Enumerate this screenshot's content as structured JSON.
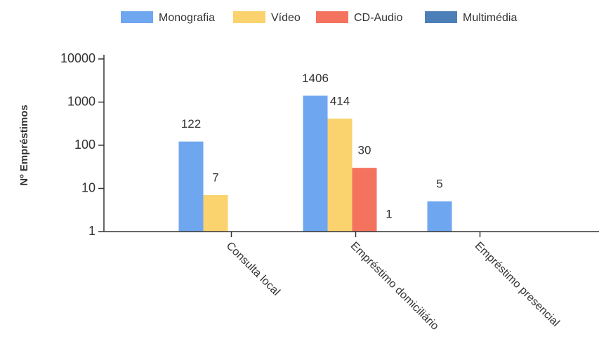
{
  "chart_data": {
    "type": "bar",
    "y_label": "Nº Empréstimos",
    "categories": [
      "Consulta local",
      "Empréstimo domiciliário",
      "Empréstimo presencial"
    ],
    "series": [
      {
        "name": "Monografia",
        "color": "#6ea6f0",
        "values": [
          122,
          1406,
          5
        ]
      },
      {
        "name": "Vídeo",
        "color": "#fad26e",
        "values": [
          7,
          414,
          null
        ]
      },
      {
        "name": "CD-Audio",
        "color": "#f4735f",
        "values": [
          null,
          30,
          null
        ]
      },
      {
        "name": "Multimédia",
        "color": "#4c7fb8",
        "values": [
          null,
          1,
          null
        ]
      }
    ],
    "ylim": [
      1,
      10000
    ],
    "yticks": [
      1,
      10,
      100,
      1000,
      10000
    ],
    "log_scale": true,
    "legend": "top"
  }
}
